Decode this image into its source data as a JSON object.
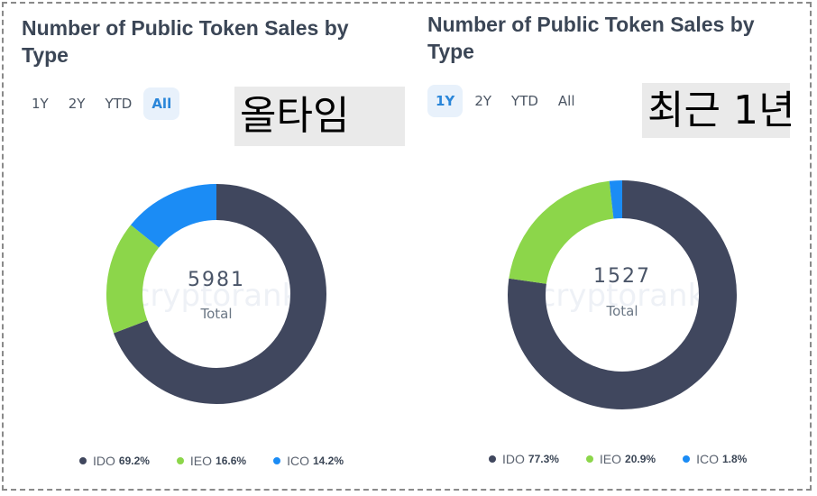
{
  "colors": {
    "IDO": "#40475e",
    "IEO": "#8cd64a",
    "ICO": "#1b8cf5",
    "tab_active": "#2a86d9"
  },
  "chart_data": [
    {
      "type": "pie",
      "title": "Number of Public Token Sales by Type",
      "tabs": [
        "1Y",
        "2Y",
        "YTD",
        "All"
      ],
      "active_tab": "All",
      "overlay_label": "올타임",
      "total": "5981",
      "total_label": "Total",
      "watermark": "cryptorank",
      "legend_placement": "bottom",
      "categories": [
        "IDO",
        "IEO",
        "ICO"
      ],
      "values": [
        69.2,
        16.6,
        14.2
      ],
      "value_labels": [
        "69.2%",
        "16.6%",
        "14.2%"
      ]
    },
    {
      "type": "pie",
      "title": "Number of Public Token Sales by Type",
      "tabs": [
        "1Y",
        "2Y",
        "YTD",
        "All"
      ],
      "active_tab": "1Y",
      "overlay_label": "최근 1년",
      "total": "1527",
      "total_label": "Total",
      "watermark": "cryptorank",
      "legend_placement": "bottom",
      "categories": [
        "IDO",
        "IEO",
        "ICO"
      ],
      "values": [
        77.3,
        20.9,
        1.8
      ],
      "value_labels": [
        "77.3%",
        "20.9%",
        "1.8%"
      ]
    }
  ]
}
